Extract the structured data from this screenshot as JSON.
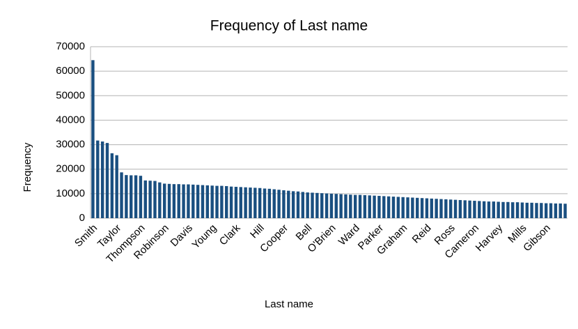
{
  "chart_data": {
    "type": "bar",
    "title": "Frequency of Last name",
    "x_label": "Last name",
    "y_label": "Frequency",
    "categories": [
      "Smith",
      null,
      null,
      null,
      null,
      "Taylor",
      null,
      null,
      null,
      null,
      "Thompson",
      null,
      null,
      null,
      null,
      "Robinson",
      null,
      null,
      null,
      null,
      "Davis",
      null,
      null,
      null,
      null,
      "Young",
      null,
      null,
      null,
      null,
      "Clark",
      null,
      null,
      null,
      null,
      "Hill",
      null,
      null,
      null,
      null,
      "Cooper",
      null,
      null,
      null,
      null,
      "Bell",
      null,
      null,
      null,
      null,
      "O'Brien",
      null,
      null,
      null,
      null,
      "Ward",
      null,
      null,
      null,
      null,
      "Parker",
      null,
      null,
      null,
      null,
      "Graham",
      null,
      null,
      null,
      null,
      "Reid",
      null,
      null,
      null,
      null,
      "Ross",
      null,
      null,
      null,
      null,
      "Cameron",
      null,
      null,
      null,
      null,
      "Harvey",
      null,
      null,
      null,
      null,
      "Mills",
      null,
      null,
      null,
      null,
      "Gibson",
      null,
      null,
      null,
      null
    ],
    "values": [
      64500,
      31700,
      31300,
      30700,
      26500,
      25700,
      18700,
      17600,
      17500,
      17500,
      17300,
      15400,
      15300,
      15200,
      14600,
      14100,
      14000,
      13900,
      13900,
      13800,
      13800,
      13700,
      13600,
      13500,
      13400,
      13300,
      13200,
      13200,
      13100,
      12900,
      12800,
      12700,
      12600,
      12500,
      12400,
      12300,
      12100,
      12000,
      11800,
      11600,
      11400,
      11200,
      11000,
      10900,
      10700,
      10500,
      10400,
      10300,
      10200,
      10100,
      10000,
      9900,
      9800,
      9700,
      9600,
      9500,
      9500,
      9400,
      9300,
      9200,
      9100,
      9000,
      8900,
      8800,
      8700,
      8600,
      8500,
      8400,
      8300,
      8200,
      8100,
      8000,
      7900,
      7800,
      7700,
      7600,
      7500,
      7400,
      7300,
      7200,
      7100,
      7000,
      6900,
      6800,
      6800,
      6700,
      6600,
      6600,
      6500,
      6500,
      6400,
      6300,
      6300,
      6200,
      6200,
      6100,
      6100,
      6000,
      6000,
      5900
    ],
    "color": "#1a4f80",
    "ylim": [
      0,
      70000
    ],
    "yticks": [
      0,
      10000,
      20000,
      30000,
      40000,
      50000,
      60000,
      70000
    ],
    "grid": true
  }
}
